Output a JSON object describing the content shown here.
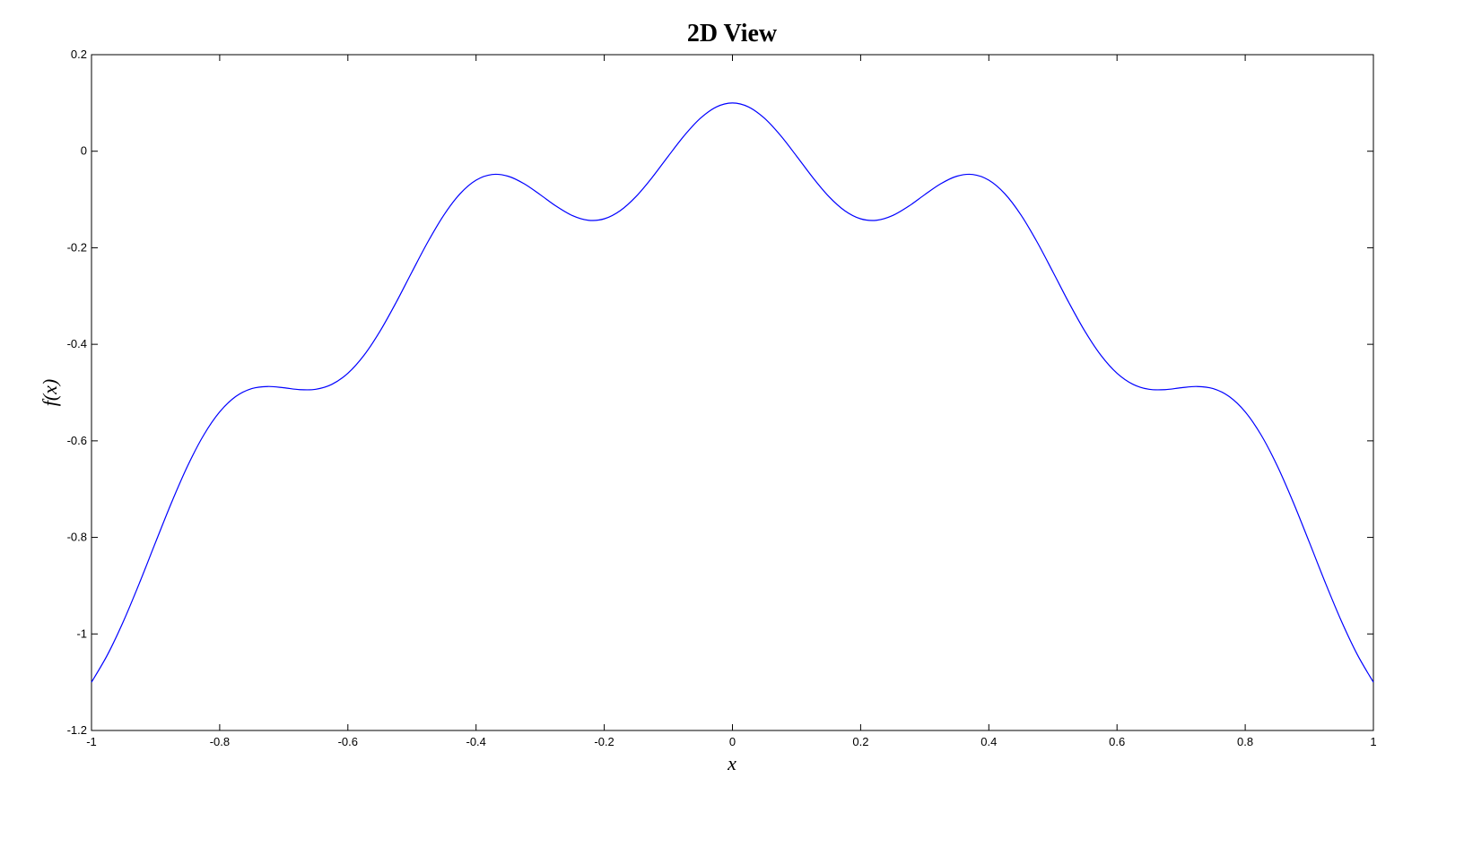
{
  "chart_data": {
    "type": "line",
    "title": "2D View",
    "xlabel": "x",
    "ylabel": "f(x)",
    "xlim": [
      -1,
      1
    ],
    "ylim": [
      -1.2,
      0.2
    ],
    "xticks": [
      "-1",
      "-0.8",
      "-0.6",
      "-0.4",
      "-0.2",
      "0",
      "0.2",
      "0.4",
      "0.6",
      "0.8",
      "1"
    ],
    "yticks": [
      "-1.2",
      "-1",
      "-0.8",
      "-0.6",
      "-0.4",
      "-0.2",
      "0",
      "0.2"
    ],
    "grid": false,
    "line_color": "#0000ff",
    "series": [
      {
        "x": [
          -1,
          -0.975,
          -0.95,
          -0.925,
          -0.9,
          -0.875,
          -0.85,
          -0.825,
          -0.8,
          -0.775,
          -0.75,
          -0.725,
          -0.7,
          -0.675,
          -0.65,
          -0.625,
          -0.6,
          -0.575,
          -0.55,
          -0.525,
          -0.5,
          -0.475,
          -0.45,
          -0.425,
          -0.4,
          -0.375,
          -0.35,
          -0.325,
          -0.3,
          -0.275,
          -0.25,
          -0.225,
          -0.2,
          -0.175,
          -0.15,
          -0.125,
          -0.1,
          -0.075,
          -0.05,
          -0.025,
          0,
          0.025,
          0.05,
          0.075,
          0.1,
          0.125,
          0.15,
          0.175,
          0.2,
          0.225,
          0.25,
          0.275,
          0.3,
          0.325,
          0.35,
          0.375,
          0.4,
          0.425,
          0.45,
          0.475,
          0.5,
          0.525,
          0.55,
          0.575,
          0.6,
          0.625,
          0.65,
          0.675,
          0.7,
          0.725,
          0.75,
          0.775,
          0.8,
          0.825,
          0.85,
          0.875,
          0.9,
          0.925,
          0.95,
          0.975,
          1
        ],
        "y": [
          -1.1,
          -1.043,
          -0.9732,
          -0.8939,
          -0.81,
          -0.7274,
          -0.6518,
          -0.5882,
          -0.54,
          -0.5082,
          -0.4918,
          -0.4874,
          -0.49,
          -0.4939,
          -0.4932,
          -0.483,
          -0.46,
          -0.423,
          -0.3732,
          -0.3139,
          -0.25,
          -0.1874,
          -0.1318,
          -0.0882,
          -0.06,
          -0.0482,
          -0.0518,
          -0.0674,
          -0.09,
          -0.1139,
          -0.1332,
          -0.143,
          -0.14,
          -0.123,
          -0.0932,
          -0.0539,
          -0.01,
          0.0326,
          0.0682,
          0.0918,
          0.1,
          0.0918,
          0.0682,
          0.0326,
          -0.01,
          -0.0539,
          -0.0932,
          -0.123,
          -0.14,
          -0.143,
          -0.1332,
          -0.1139,
          -0.09,
          -0.0674,
          -0.0518,
          -0.0482,
          -0.06,
          -0.0882,
          -0.1318,
          -0.1874,
          -0.25,
          -0.3139,
          -0.3732,
          -0.423,
          -0.46,
          -0.483,
          -0.4932,
          -0.4939,
          -0.49,
          -0.4874,
          -0.4918,
          -0.5082,
          -0.54,
          -0.5882,
          -0.6518,
          -0.7274,
          -0.81,
          -0.8939,
          -0.9732,
          -1.043,
          -1.1
        ]
      }
    ]
  }
}
